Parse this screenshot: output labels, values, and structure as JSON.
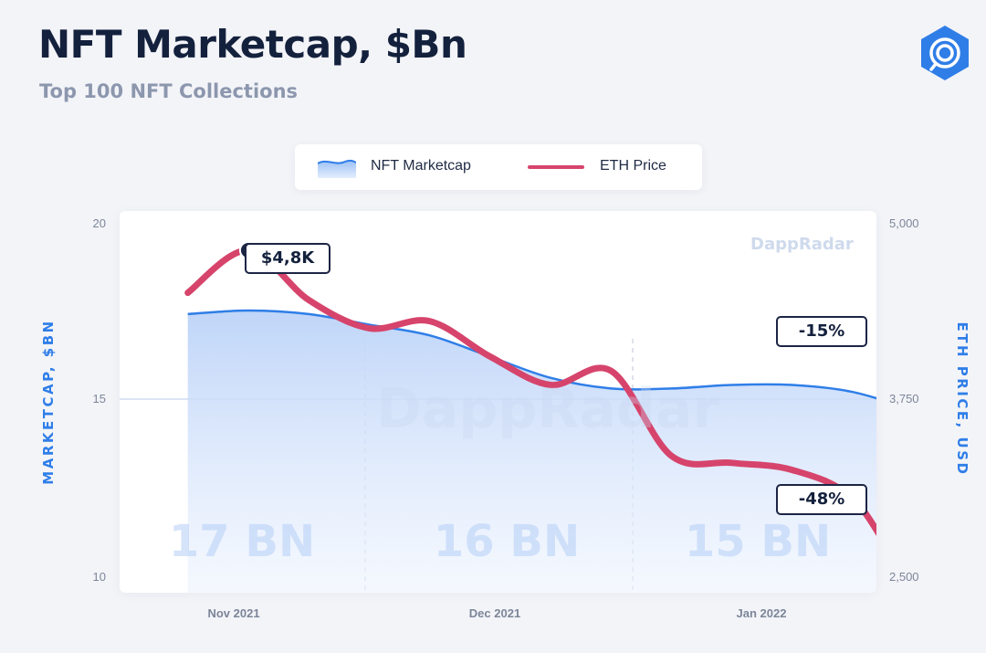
{
  "header": {
    "title": "NFT Marketcap, $Bn",
    "subtitle": "Top 100 NFT Collections",
    "logo_icon": "dappradar-logo-icon"
  },
  "legend": {
    "marketcap_label": "NFT Marketcap",
    "eth_label": "ETH Price"
  },
  "colors": {
    "marketcap_line": "#2f7ee8",
    "marketcap_fill": "#cfe0fb",
    "eth_line": "#d6446c",
    "axis_label": "#2f7ee8",
    "callout_border": "#1c2544"
  },
  "axes": {
    "left_label": "MARKETCAP, $BN",
    "right_label": "ETH PRICE, USD",
    "left_ticks": [
      "20",
      "15",
      "10"
    ],
    "right_ticks": [
      "5,000",
      "3,750",
      "2,500"
    ],
    "x_ticks": [
      "Nov 2021",
      "Dec 2021",
      "Jan 2022"
    ]
  },
  "annotations": {
    "eth_peak": "$4,8K",
    "mcap_change": "-15%",
    "eth_change": "-48%"
  },
  "periods": [
    "17 BN",
    "16 BN",
    "15 BN"
  ],
  "watermark": "DappRadar",
  "chart_data": {
    "type": "area",
    "xlabel": "",
    "ylabel": "MARKETCAP, $BN",
    "y2label": "ETH PRICE, USD",
    "ylim": [
      10,
      20
    ],
    "y2lim": [
      2500,
      5000
    ],
    "x": [
      "2021-10-27",
      "2021-11-03",
      "2021-11-10",
      "2021-11-17",
      "2021-11-24",
      "2021-12-01",
      "2021-12-08",
      "2021-12-15",
      "2021-12-22",
      "2021-12-29",
      "2022-01-05",
      "2022-01-12",
      "2022-01-19",
      "2022-01-26"
    ],
    "x_ticks": [
      "Nov 2021",
      "Dec 2021",
      "Jan 2022"
    ],
    "series": [
      {
        "name": "NFT Marketcap",
        "axis": "left",
        "values": [
          17.4,
          17.5,
          17.4,
          17.1,
          16.8,
          16.2,
          15.6,
          15.3,
          15.3,
          15.4,
          15.4,
          15.2,
          14.7,
          14.2
        ]
      },
      {
        "name": "ETH Price",
        "axis": "right",
        "values": [
          4500,
          4800,
          4450,
          4250,
          4300,
          4050,
          3850,
          3950,
          3350,
          3300,
          3250,
          3050,
          2500,
          2660
        ]
      }
    ],
    "annotations": [
      {
        "text": "$4,8K",
        "series": "ETH Price",
        "x": "2021-11-03"
      },
      {
        "text": "-15%",
        "series": "NFT Marketcap",
        "x": "2022-01-19"
      },
      {
        "text": "-48%",
        "series": "ETH Price",
        "x": "2022-01-19"
      }
    ],
    "grid": true,
    "legend": "top-center"
  }
}
